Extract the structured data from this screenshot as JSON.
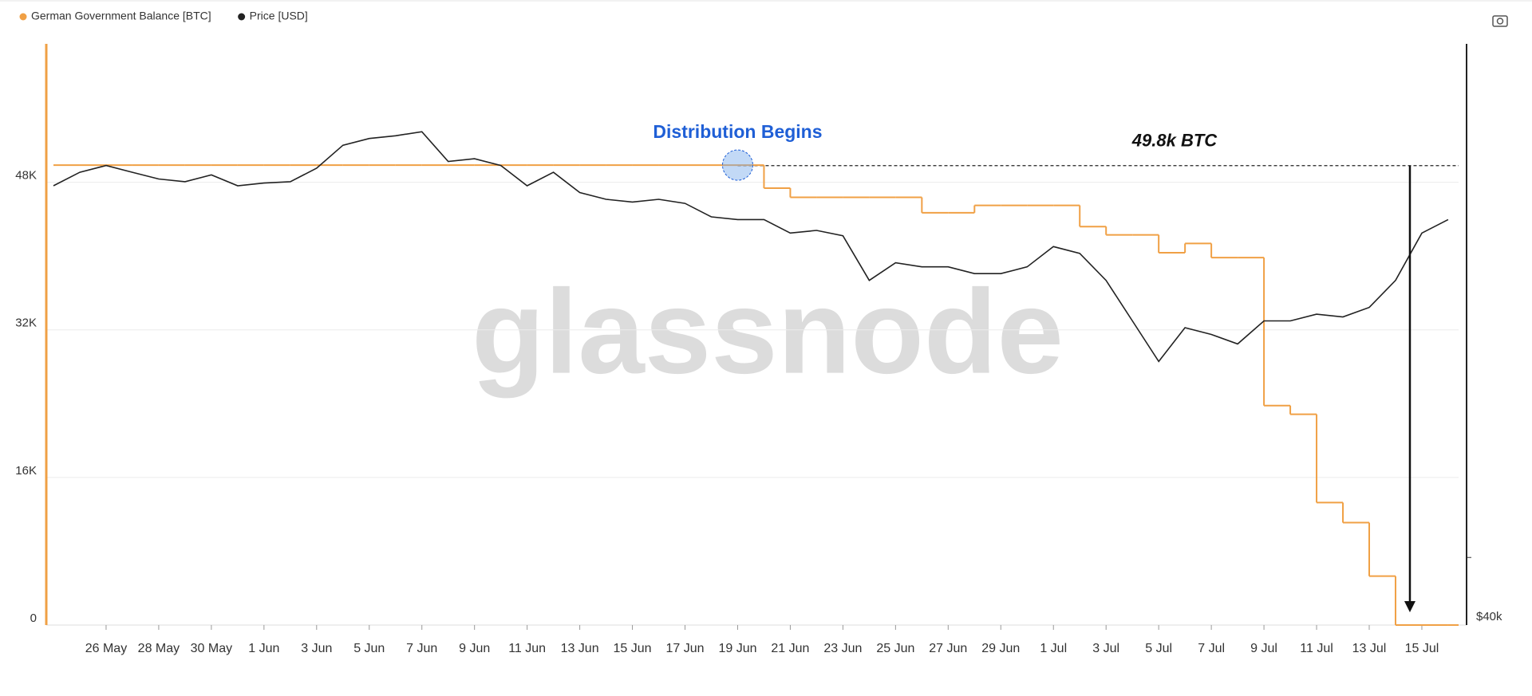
{
  "chart_data": {
    "type": "line",
    "watermark": "glassnode",
    "categories": [
      null,
      null,
      "26 May",
      null,
      "28 May",
      null,
      "30 May",
      null,
      "1 Jun",
      null,
      "3 Jun",
      null,
      "5 Jun",
      null,
      "7 Jun",
      null,
      "9 Jun",
      null,
      "11 Jun",
      null,
      "13 Jun",
      null,
      "15 Jun",
      null,
      "17 Jun",
      null,
      "19 Jun",
      null,
      "21 Jun",
      null,
      "23 Jun",
      null,
      "25 Jun",
      null,
      "27 Jun",
      null,
      "29 Jun",
      null,
      "1 Jul",
      null,
      "3 Jul",
      null,
      "5 Jul",
      null,
      "7 Jul",
      null,
      "9 Jul",
      null,
      "11 Jul",
      null,
      "13 Jul",
      null,
      "15 Jul",
      null
    ],
    "series": [
      {
        "name": "German Government Balance [BTC]",
        "color": "#f0a045",
        "step": true,
        "values": [
          49858,
          49858,
          49858,
          49858,
          49858,
          49858,
          49858,
          49858,
          49858,
          49858,
          49858,
          49858,
          49858,
          49858,
          49858,
          49858,
          49858,
          49858,
          49858,
          49858,
          49858,
          49858,
          49858,
          49858,
          49858,
          49858,
          49858,
          47359,
          46359,
          46359,
          46359,
          46359,
          46359,
          44692,
          44692,
          45492,
          45492,
          45492,
          45492,
          43192,
          42292,
          42292,
          40359,
          41359,
          39826,
          39826,
          23788,
          22847,
          13274,
          11100,
          5300,
          0,
          0,
          0
        ]
      },
      {
        "name": "Price [USD]",
        "color": "#222222",
        "axis": "y2",
        "values": [
          67500,
          68500,
          69000,
          68500,
          68000,
          67800,
          68300,
          67500,
          67700,
          67800,
          68800,
          70500,
          71000,
          71200,
          71500,
          69300,
          69500,
          69000,
          67500,
          68500,
          67000,
          66500,
          66300,
          66500,
          66200,
          65200,
          65000,
          65000,
          64000,
          64200,
          63800,
          60500,
          61800,
          61500,
          61500,
          61000,
          61000,
          61500,
          63000,
          62500,
          60500,
          57500,
          54500,
          57000,
          56500,
          55800,
          57500,
          57500,
          58000,
          57800,
          58500,
          60500,
          64000,
          65000
        ]
      }
    ],
    "ylim": [
      0,
      63000
    ],
    "yticks": [
      0,
      {
        "value": 16000,
        "label": "16K"
      },
      {
        "value": 32000,
        "label": "32K"
      },
      {
        "value": 48000,
        "label": "48K"
      }
    ],
    "y2lim": [
      35000,
      78000
    ],
    "y2ticks": [
      {
        "value": 40000,
        "label": "$40k"
      }
    ],
    "grid": true,
    "legend": "top-left",
    "annotations": [
      {
        "text": "Distribution Begins",
        "category_index": 26,
        "color": "#1f5fd6"
      },
      {
        "value": 49800,
        "label": "49.8k BTC",
        "category_index": 51
      }
    ]
  }
}
